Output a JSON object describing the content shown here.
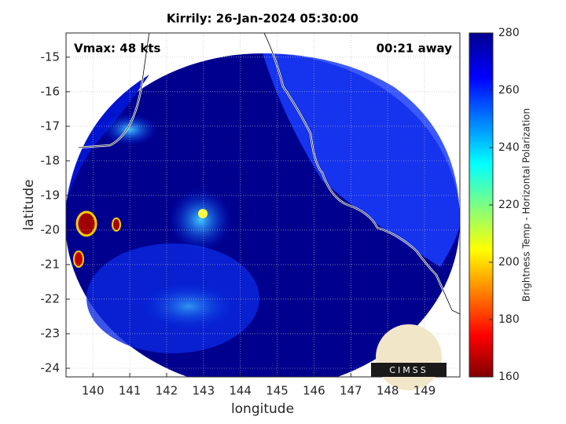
{
  "chart_data": {
    "type": "map",
    "title": "Kirrily: 26-Jan-2024 05:30:00",
    "annotations": [
      "Vmax: 48 kts",
      "00:21 away"
    ],
    "xlabel": "longitude",
    "ylabel": "latitude",
    "xlim": [
      139.27,
      149.96
    ],
    "ylim": [
      -24.25,
      -14.3
    ],
    "xticks": [
      140,
      141,
      142,
      143,
      144,
      145,
      146,
      147,
      148,
      149
    ],
    "yticks": [
      -15,
      -16,
      -17,
      -18,
      -19,
      -20,
      -21,
      -22,
      -23,
      -24
    ],
    "grid": true,
    "colorbar": {
      "label": "Brightness Temp - Horizontal Polarization",
      "lim": [
        160,
        280
      ],
      "ticks": [
        160,
        180,
        200,
        220,
        240,
        260,
        280
      ]
    },
    "logo": "CIMSS"
  }
}
